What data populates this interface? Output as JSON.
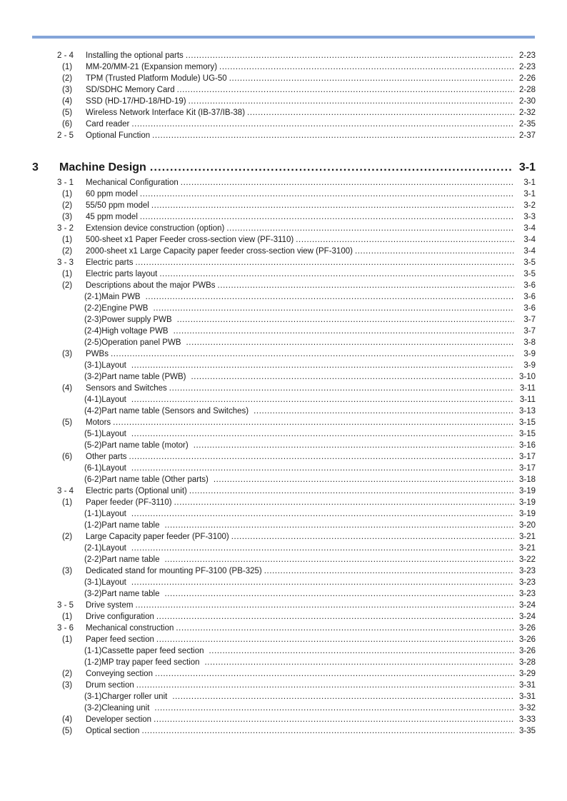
{
  "page": {
    "top_rule_color": "#84a5d9"
  },
  "toc": {
    "entries": [
      {
        "level": "section",
        "num": "2 - 4",
        "title": "Installing the optional parts",
        "page": "2-23"
      },
      {
        "level": "item",
        "num": "(1)",
        "title": "MM-20/MM-21 (Expansion memory)",
        "page": "2-23"
      },
      {
        "level": "item",
        "num": "(2)",
        "title": "TPM (Trusted Platform Module) UG-50",
        "page": "2-26"
      },
      {
        "level": "item",
        "num": "(3)",
        "title": "SD/SDHC Memory Card",
        "page": "2-28"
      },
      {
        "level": "item",
        "num": "(4)",
        "title": "SSD (HD-17/HD-18/HD-19)",
        "page": "2-30"
      },
      {
        "level": "item",
        "num": "(5)",
        "title": "Wireless Network Interface Kit (IB-37/IB-38)",
        "page": "2-32"
      },
      {
        "level": "item",
        "num": "(6)",
        "title": "Card reader",
        "page": "2-35"
      },
      {
        "level": "section",
        "num": "2 - 5",
        "title": "Optional Function",
        "page": "2-37"
      },
      {
        "level": "chapter",
        "num": "3",
        "title": "Machine Design",
        "page": "3-1"
      },
      {
        "level": "section",
        "num": "3 - 1",
        "title": "Mechanical Configuration",
        "page": "3-1"
      },
      {
        "level": "item",
        "num": "(1)",
        "title": "60 ppm model",
        "page": "3-1"
      },
      {
        "level": "item",
        "num": "(2)",
        "title": "55/50 ppm model",
        "page": "3-2"
      },
      {
        "level": "item",
        "num": "(3)",
        "title": "45 ppm model",
        "page": "3-3"
      },
      {
        "level": "section",
        "num": "3 - 2",
        "title": "Extension device construction (option)",
        "page": "3-4"
      },
      {
        "level": "item",
        "num": "(1)",
        "title": "500-sheet x1 Paper Feeder cross-section view (PF-3110)",
        "page": "3-4"
      },
      {
        "level": "item",
        "num": "(2)",
        "title": "2000-sheet x1 Large Capacity paper feeder cross-section view (PF-3100)",
        "page": "3-4"
      },
      {
        "level": "section",
        "num": "3 - 3",
        "title": "Electric parts",
        "page": "3-5"
      },
      {
        "level": "item",
        "num": "(1)",
        "title": "Electric parts layout",
        "page": "3-5"
      },
      {
        "level": "item",
        "num": "(2)",
        "title": "Descriptions about the major PWBs",
        "page": "3-6"
      },
      {
        "level": "sub",
        "num": "(2-1)",
        "title": "Main PWB ",
        "page": "3-6"
      },
      {
        "level": "sub",
        "num": "(2-2)",
        "title": "Engine PWB ",
        "page": "3-6"
      },
      {
        "level": "sub",
        "num": "(2-3)",
        "title": "Power supply PWB ",
        "page": "3-7"
      },
      {
        "level": "sub",
        "num": "(2-4)",
        "title": "High voltage PWB ",
        "page": "3-7"
      },
      {
        "level": "sub",
        "num": "(2-5)",
        "title": "Operation panel PWB ",
        "page": "3-8"
      },
      {
        "level": "item",
        "num": "(3)",
        "title": "PWBs",
        "page": "3-9"
      },
      {
        "level": "sub",
        "num": "(3-1)",
        "title": "Layout ",
        "page": "3-9"
      },
      {
        "level": "sub",
        "num": "(3-2)",
        "title": "Part name table (PWB) ",
        "page": "3-10"
      },
      {
        "level": "item",
        "num": "(4)",
        "title": "Sensors and Switches",
        "page": "3-11"
      },
      {
        "level": "sub",
        "num": "(4-1)",
        "title": "Layout ",
        "page": "3-11"
      },
      {
        "level": "sub",
        "num": "(4-2)",
        "title": "Part name table (Sensors and Switches) ",
        "page": "3-13"
      },
      {
        "level": "item",
        "num": "(5)",
        "title": "Motors",
        "page": "3-15"
      },
      {
        "level": "sub",
        "num": "(5-1)",
        "title": "Layout ",
        "page": "3-15"
      },
      {
        "level": "sub",
        "num": "(5-2)",
        "title": "Part name table (motor) ",
        "page": "3-16"
      },
      {
        "level": "item",
        "num": "(6)",
        "title": "Other parts",
        "page": "3-17"
      },
      {
        "level": "sub",
        "num": "(6-1)",
        "title": "Layout ",
        "page": "3-17"
      },
      {
        "level": "sub",
        "num": "(6-2)",
        "title": "Part name table (Other parts) ",
        "page": "3-18"
      },
      {
        "level": "section",
        "num": "3 - 4",
        "title": "Electric parts (Optional unit)",
        "page": "3-19"
      },
      {
        "level": "item",
        "num": "(1)",
        "title": "Paper feeder (PF-3110)",
        "page": "3-19"
      },
      {
        "level": "sub",
        "num": "(1-1)",
        "title": "Layout ",
        "page": "3-19"
      },
      {
        "level": "sub",
        "num": "(1-2)",
        "title": "Part name table ",
        "page": "3-20"
      },
      {
        "level": "item",
        "num": "(2)",
        "title": "Large Capacity paper feeder (PF-3100)",
        "page": "3-21"
      },
      {
        "level": "sub",
        "num": "(2-1)",
        "title": "Layout ",
        "page": "3-21"
      },
      {
        "level": "sub",
        "num": "(2-2)",
        "title": "Part name table ",
        "page": "3-22"
      },
      {
        "level": "item",
        "num": "(3)",
        "title": "Dedicated stand for mounting PF-3100 (PB-325)",
        "page": "3-23"
      },
      {
        "level": "sub",
        "num": "(3-1)",
        "title": "Layout ",
        "page": "3-23"
      },
      {
        "level": "sub",
        "num": "(3-2)",
        "title": "Part name table ",
        "page": "3-23"
      },
      {
        "level": "section",
        "num": "3 - 5",
        "title": "Drive system",
        "page": "3-24"
      },
      {
        "level": "item",
        "num": "(1)",
        "title": "Drive configuration",
        "page": "3-24"
      },
      {
        "level": "section",
        "num": "3 - 6",
        "title": "Mechanical construction",
        "page": "3-26"
      },
      {
        "level": "item",
        "num": "(1)",
        "title": "Paper feed section",
        "page": "3-26"
      },
      {
        "level": "sub",
        "num": "(1-1)",
        "title": "Cassette paper feed section ",
        "page": "3-26"
      },
      {
        "level": "sub",
        "num": "(1-2)",
        "title": "MP tray paper feed section ",
        "page": "3-28"
      },
      {
        "level": "item",
        "num": "(2)",
        "title": "Conveying section",
        "page": "3-29"
      },
      {
        "level": "item",
        "num": "(3)",
        "title": "Drum section",
        "page": "3-31"
      },
      {
        "level": "sub",
        "num": "(3-1)",
        "title": "Charger roller unit ",
        "page": "3-31"
      },
      {
        "level": "sub",
        "num": "(3-2)",
        "title": "Cleaning unit ",
        "page": "3-32"
      },
      {
        "level": "item",
        "num": "(4)",
        "title": "Developer section",
        "page": "3-33"
      },
      {
        "level": "item",
        "num": "(5)",
        "title": "Optical section",
        "page": "3-35"
      }
    ]
  }
}
